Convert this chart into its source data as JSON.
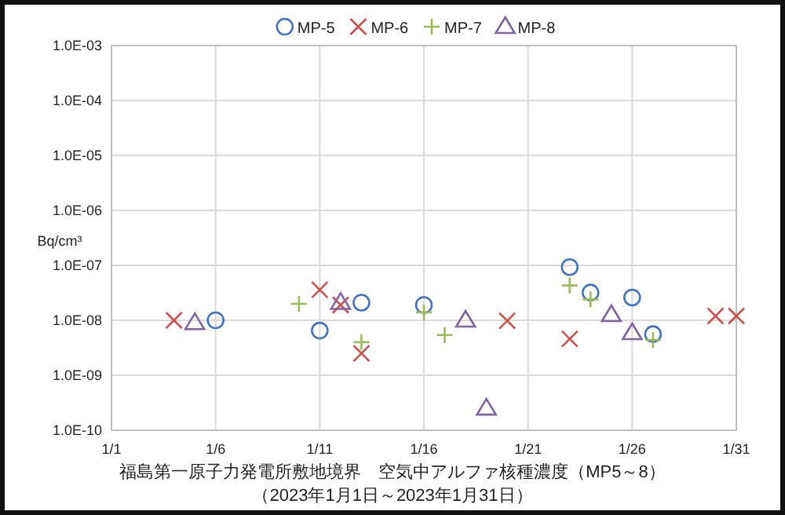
{
  "chart_data": {
    "type": "scatter",
    "title": "福島第一原子力発電所敷地境界　空気中アルファ核種濃度（MP5～8）",
    "subtitle": "（2023年1月1日～2023年1月31日）",
    "ylabel": "Bq/cm³",
    "log": "y",
    "grid": true,
    "legend": "top",
    "xlim": [
      "--01-01",
      "--01-31"
    ],
    "xticks": [
      {
        "value": "--01-01",
        "label": "1/1"
      },
      {
        "value": "--01-06",
        "label": "1/6"
      },
      {
        "value": "--01-11",
        "label": "1/11"
      },
      {
        "value": "--01-16",
        "label": "1/16"
      },
      {
        "value": "--01-21",
        "label": "1/21"
      },
      {
        "value": "--01-26",
        "label": "1/26"
      },
      {
        "value": "--01-31",
        "label": "1/31"
      }
    ],
    "ylim": [
      1e-10,
      0.001
    ],
    "yticks": [
      {
        "value": 1e-10,
        "label": "1.0E-10"
      },
      {
        "value": 1e-09,
        "label": "1.0E-09"
      },
      {
        "value": 1e-08,
        "label": "1.0E-08"
      },
      {
        "value": 1e-07,
        "label": "1.0E-07"
      },
      {
        "value": 1e-06,
        "label": "1.0E-06"
      },
      {
        "value": 1e-05,
        "label": "1.0E-05"
      },
      {
        "value": 0.0001,
        "label": "1.0E-04"
      },
      {
        "value": 0.001,
        "label": "1.0E-03"
      }
    ],
    "series": [
      {
        "name": "MP-5",
        "color": "#4472c4",
        "marker": "circle",
        "x": [
          "--01-06",
          "--01-11",
          "--01-13",
          "--01-16",
          "--01-23",
          "--01-24",
          "--01-26",
          "--01-27"
        ],
        "values": [
          1e-08,
          6.5e-09,
          2.1e-08,
          1.9e-08,
          9.3e-08,
          3.2e-08,
          2.6e-08,
          5.6e-09
        ]
      },
      {
        "name": "MP-6",
        "color": "#d05050",
        "marker": "cross",
        "x": [
          "--01-04",
          "--01-11",
          "--01-12",
          "--01-13",
          "--01-20",
          "--01-23",
          "--01-30",
          "--01-31"
        ],
        "values": [
          1e-08,
          3.6e-08,
          1.9e-08,
          2.5e-09,
          9.8e-09,
          4.6e-09,
          1.2e-08,
          1.2e-08
        ]
      },
      {
        "name": "MP-7",
        "color": "#9bbb59",
        "marker": "plus",
        "x": [
          "--01-10",
          "--01-13",
          "--01-16",
          "--01-17",
          "--01-23",
          "--01-24",
          "--01-27"
        ],
        "values": [
          2e-08,
          4e-09,
          1.4e-08,
          5.4e-09,
          4.3e-08,
          2.4e-08,
          4.4e-09
        ]
      },
      {
        "name": "MP-8",
        "color": "#8064a2",
        "marker": "triangle",
        "x": [
          "--01-05",
          "--01-12",
          "--01-18",
          "--01-19",
          "--01-25",
          "--01-26"
        ],
        "values": [
          9e-09,
          2.1e-08,
          1e-08,
          2.5e-10,
          1.26e-08,
          5.9e-09
        ]
      }
    ]
  }
}
